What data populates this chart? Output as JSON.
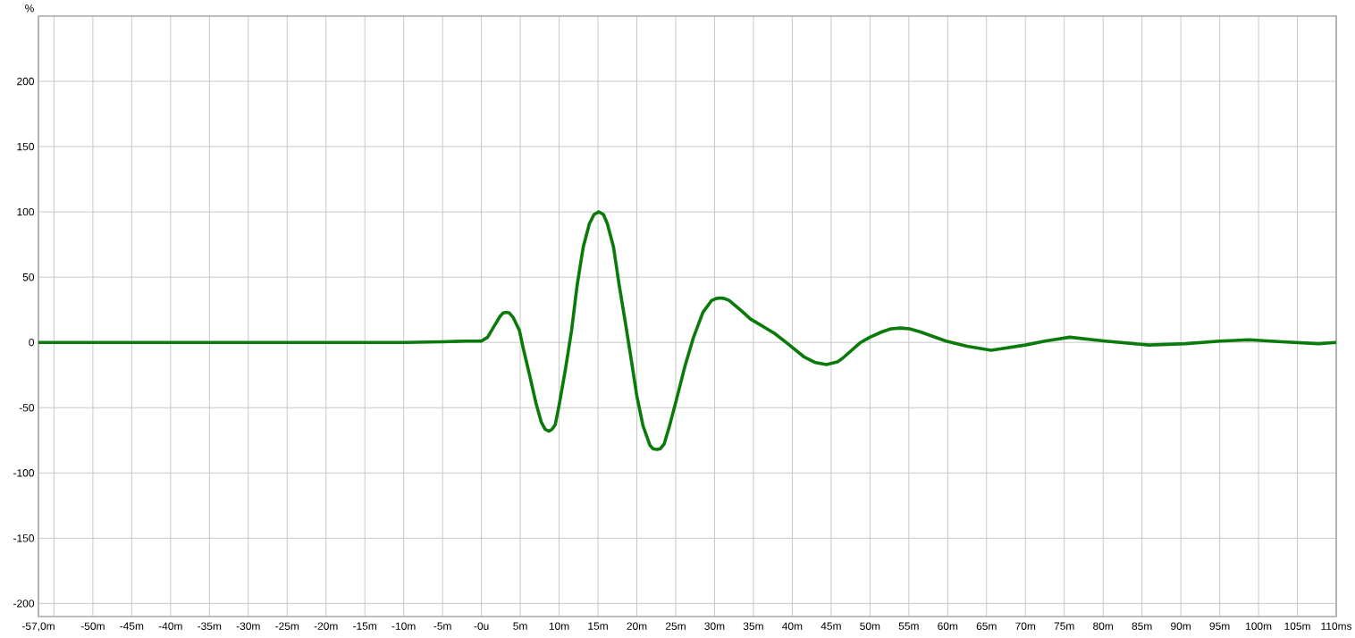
{
  "chart_data": {
    "type": "line",
    "ylabel": "%",
    "x": [
      -57,
      -50,
      -45,
      -40,
      -35,
      -30,
      -25,
      -20,
      -15,
      -12,
      -10,
      -5,
      -2,
      -1,
      0,
      0.8,
      1.6,
      2.4,
      2.8,
      3.2,
      3.6,
      4.1,
      4.9,
      5.4,
      6.2,
      7.0,
      7.7,
      8.2,
      8.7,
      9.1,
      9.5,
      10.0,
      10.8,
      11.6,
      12.3,
      13.1,
      13.9,
      14.5,
      15.1,
      15.7,
      16.2,
      17.0,
      17.7,
      18.5,
      19.3,
      20.0,
      20.8,
      21.7,
      22.1,
      22.6,
      23.0,
      23.5,
      24.2,
      25.0,
      26.2,
      27.3,
      28.5,
      29.6,
      30.2,
      30.7,
      31.3,
      31.9,
      33.5,
      34.6,
      37.7,
      39.2,
      41.5,
      43.0,
      44.4,
      45.8,
      46.5,
      48.8,
      50.0,
      51.5,
      52.7,
      53.9,
      55.1,
      56.5,
      59.8,
      62.5,
      65.6,
      70.0,
      72.5,
      75.7,
      80.3,
      85.9,
      90.6,
      95.0,
      98.8,
      103.0,
      107.7,
      110.0
    ],
    "series": [
      {
        "color": "#0a7a0a",
        "values": [
          0,
          0,
          0,
          0,
          0,
          0,
          0,
          0,
          0,
          0,
          0,
          0.5,
          1,
          1,
          1,
          4,
          12,
          20,
          22.5,
          23,
          22.5,
          19,
          9,
          -5,
          -25,
          -46,
          -61,
          -66.5,
          -68,
          -66.5,
          -63,
          -48,
          -21,
          9,
          43,
          73,
          91,
          98,
          100,
          98,
          91,
          73,
          45,
          16,
          -14,
          -41,
          -64,
          -79,
          -81.5,
          -82,
          -81.5,
          -78,
          -64,
          -46,
          -18,
          4,
          23,
          32,
          33.6,
          34,
          33.6,
          32,
          24,
          18,
          7,
          0,
          -11,
          -15.5,
          -17,
          -15,
          -12,
          0,
          4,
          8,
          10.4,
          11,
          10.4,
          8,
          1,
          -3,
          -6,
          -2,
          1,
          4,
          1,
          -2,
          -1,
          1,
          2,
          0.5,
          -1,
          0
        ]
      }
    ],
    "xlim": [
      -57,
      110
    ],
    "ylim": [
      -210,
      250
    ],
    "xticks": [
      {
        "value": -57,
        "label": "-57,0m"
      },
      {
        "value": -55,
        "label": null
      },
      {
        "value": -50,
        "label": "-50m"
      },
      {
        "value": -45,
        "label": "-45m"
      },
      {
        "value": -40,
        "label": "-40m"
      },
      {
        "value": -35,
        "label": "-35m"
      },
      {
        "value": -30,
        "label": "-30m"
      },
      {
        "value": -25,
        "label": "-25m"
      },
      {
        "value": -20,
        "label": "-20m"
      },
      {
        "value": -15,
        "label": "-15m"
      },
      {
        "value": -10,
        "label": "-10m"
      },
      {
        "value": -5,
        "label": "-5m"
      },
      {
        "value": 0,
        "label": "-0u"
      },
      {
        "value": 5,
        "label": "5m"
      },
      {
        "value": 10,
        "label": "10m"
      },
      {
        "value": 15,
        "label": "15m"
      },
      {
        "value": 20,
        "label": "20m"
      },
      {
        "value": 25,
        "label": "25m"
      },
      {
        "value": 30,
        "label": "30m"
      },
      {
        "value": 35,
        "label": "35m"
      },
      {
        "value": 40,
        "label": "40m"
      },
      {
        "value": 45,
        "label": "45m"
      },
      {
        "value": 50,
        "label": "50m"
      },
      {
        "value": 55,
        "label": "55m"
      },
      {
        "value": 60,
        "label": "60m"
      },
      {
        "value": 65,
        "label": "65m"
      },
      {
        "value": 70,
        "label": "70m"
      },
      {
        "value": 75,
        "label": "75m"
      },
      {
        "value": 80,
        "label": "80m"
      },
      {
        "value": 85,
        "label": "85m"
      },
      {
        "value": 90,
        "label": "90m"
      },
      {
        "value": 95,
        "label": "95m"
      },
      {
        "value": 100,
        "label": "100m"
      },
      {
        "value": 105,
        "label": "105m"
      },
      {
        "value": 110,
        "label": "110ms"
      }
    ],
    "yticks": [
      -200,
      -150,
      -100,
      -50,
      0,
      50,
      100,
      150,
      200
    ],
    "grid": true,
    "marker": "none",
    "line_style": "solid"
  }
}
